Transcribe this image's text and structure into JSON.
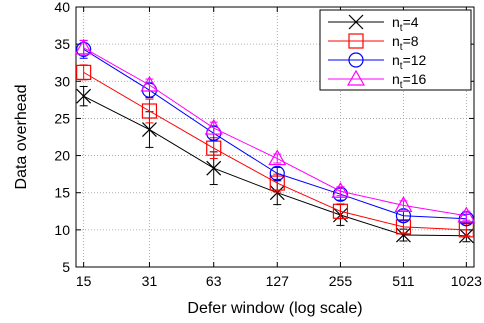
{
  "chart_data": {
    "type": "line",
    "title": "",
    "xlabel": "Defer window (log scale)",
    "ylabel": "Data overhead",
    "x_scale": "log",
    "x": [
      15,
      31,
      63,
      127,
      255,
      511,
      1023
    ],
    "x_tick_labels": [
      "15",
      "31",
      "63",
      "127",
      "255",
      "511",
      "1023"
    ],
    "ylim": [
      5,
      40
    ],
    "y_ticks": [
      5,
      10,
      15,
      20,
      25,
      30,
      35,
      40
    ],
    "grid": true,
    "legend_position": "top-right",
    "error_bars": true,
    "series": [
      {
        "name_main": "n",
        "name_sub": "t",
        "name_value": "=4",
        "color": "#000000",
        "marker": "x",
        "values": [
          28.0,
          23.5,
          18.3,
          15.0,
          12.0,
          9.3,
          9.2
        ],
        "errors": [
          1.3,
          2.4,
          2.2,
          1.6,
          1.4,
          0.8,
          0.8
        ]
      },
      {
        "name_main": "n",
        "name_sub": "t",
        "name_value": "=8",
        "color": "#ff0000",
        "marker": "square",
        "values": [
          31.2,
          26.0,
          21.0,
          16.3,
          12.5,
          10.4,
          10.0
        ],
        "errors": [
          1.0,
          1.6,
          1.4,
          1.2,
          1.0,
          0.8,
          0.8
        ]
      },
      {
        "name_main": "n",
        "name_sub": "t",
        "name_value": "=12",
        "color": "#0000ff",
        "marker": "circle",
        "values": [
          34.3,
          28.8,
          23.0,
          17.6,
          14.8,
          11.9,
          11.5
        ],
        "errors": [
          1.2,
          1.0,
          1.0,
          0.8,
          0.8,
          0.6,
          0.6
        ]
      },
      {
        "name_main": "n",
        "name_sub": "t",
        "name_value": "=16",
        "color": "#ff00ff",
        "marker": "triangle",
        "values": [
          34.5,
          29.5,
          23.7,
          19.6,
          15.2,
          13.3,
          11.9
        ],
        "errors": [
          1.0,
          0.8,
          0.8,
          0.6,
          0.6,
          0.6,
          0.6
        ]
      }
    ]
  }
}
